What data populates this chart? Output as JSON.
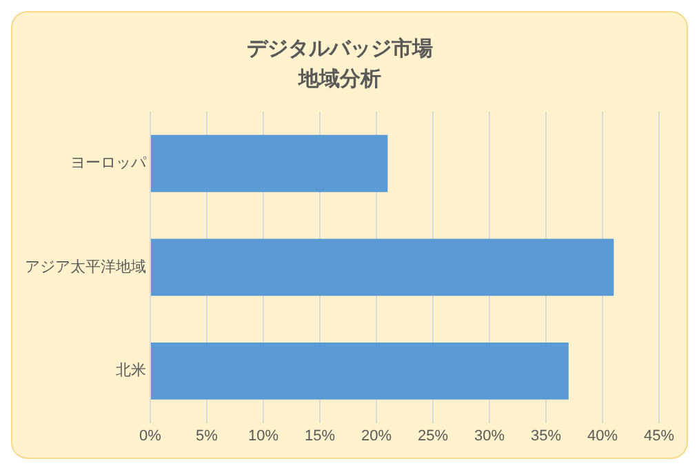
{
  "chart_data": {
    "type": "bar",
    "orientation": "horizontal",
    "title": "デジタルバッジ市場",
    "subtitle": "地域分析",
    "categories": [
      "ヨーロッパ",
      "アジア太平洋地域",
      "北米"
    ],
    "values": [
      21,
      41,
      37
    ],
    "color": "#5b9bd5",
    "xlim": [
      0,
      45
    ],
    "xticks": [
      {
        "value": 0,
        "label": "0%"
      },
      {
        "value": 5,
        "label": "5%"
      },
      {
        "value": 10,
        "label": "10%"
      },
      {
        "value": 15,
        "label": "15%"
      },
      {
        "value": 20,
        "label": "20%"
      },
      {
        "value": 25,
        "label": "25%"
      },
      {
        "value": 30,
        "label": "30%"
      },
      {
        "value": 35,
        "label": "35%"
      },
      {
        "value": 40,
        "label": "40%"
      },
      {
        "value": 45,
        "label": "45%"
      }
    ],
    "grid": "x",
    "legend": false
  }
}
